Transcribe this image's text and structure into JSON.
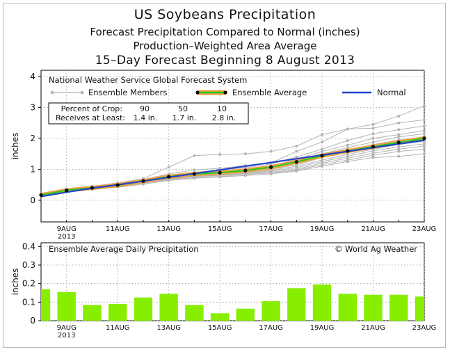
{
  "header": {
    "title": "US Soybeans Precipitation",
    "subtitle1": "Forecast Precipitation Compared to Normal (inches)",
    "subtitle2": "Production–Weighted Area Average",
    "subtitle3": "15–Day Forecast Beginning 8 August 2013"
  },
  "chart_data": [
    {
      "type": "line",
      "system_label": "National Weather Service Global Forecast System",
      "ylabel": "inches",
      "ylim": [
        -0.7,
        4.2
      ],
      "yticks": [
        "4",
        "3",
        "2",
        "1",
        "0"
      ],
      "ytick_values": [
        4,
        3,
        2,
        1,
        0
      ],
      "x": [
        8,
        9,
        10,
        11,
        12,
        13,
        14,
        15,
        16,
        17,
        18,
        19,
        20,
        21,
        22,
        23
      ],
      "xlim": [
        8,
        23
      ],
      "xticks": [
        "9AUG",
        "11AUG",
        "13AUG",
        "15AUG",
        "17AUG",
        "19AUG",
        "21AUG",
        "23AUG"
      ],
      "xtick_values": [
        9,
        11,
        13,
        15,
        17,
        19,
        21,
        23
      ],
      "xtick_year": "2013",
      "grid": true,
      "legend": {
        "members": "Ensemble Members",
        "average": "Ensemble Average",
        "normal": "Normal"
      },
      "crop_table": {
        "row1_label": "Percent of Crop:",
        "row1_values": [
          "90",
          "50",
          "10"
        ],
        "row2_label": "Receives at Least:",
        "row2_values": [
          "1.4 in.",
          "1.7 in.",
          "2.8 in."
        ]
      },
      "colors": {
        "members": "#b4b4b4",
        "average_fill": "#f0a040",
        "average_line": "#22cc22",
        "average_dot": "#000000",
        "normal": "#2244cc",
        "grid": "#999999"
      },
      "series": [
        {
          "name": "Normal",
          "values": [
            0.12,
            0.26,
            0.39,
            0.5,
            0.62,
            0.74,
            0.86,
            0.98,
            1.1,
            1.22,
            1.34,
            1.46,
            1.58,
            1.7,
            1.82,
            1.94
          ]
        },
        {
          "name": "Ensemble Average",
          "values": [
            0.17,
            0.32,
            0.4,
            0.49,
            0.62,
            0.76,
            0.85,
            0.89,
            0.96,
            1.07,
            1.24,
            1.44,
            1.59,
            1.73,
            1.87,
            2.0
          ]
        },
        {
          "values": [
            0.17,
            0.33,
            0.45,
            0.56,
            0.7,
            1.07,
            1.44,
            1.48,
            1.5,
            1.58,
            1.75,
            2.12,
            2.3,
            2.45,
            2.72,
            3.05
          ]
        },
        {
          "values": [
            0.17,
            0.32,
            0.43,
            0.53,
            0.67,
            0.85,
            0.98,
            1.03,
            1.12,
            1.2,
            1.58,
            1.88,
            2.3,
            2.33,
            2.5,
            2.6
          ]
        },
        {
          "values": [
            0.17,
            0.31,
            0.41,
            0.52,
            0.66,
            0.8,
            0.9,
            0.98,
            1.05,
            1.17,
            1.4,
            1.65,
            1.93,
            2.15,
            2.28,
            2.4
          ]
        },
        {
          "values": [
            0.17,
            0.32,
            0.42,
            0.5,
            0.64,
            0.78,
            0.88,
            0.93,
            1.0,
            1.1,
            1.32,
            1.58,
            1.78,
            2.0,
            2.12,
            2.25
          ]
        },
        {
          "values": [
            0.17,
            0.31,
            0.4,
            0.49,
            0.62,
            0.76,
            0.85,
            0.9,
            0.97,
            1.05,
            1.25,
            1.5,
            1.7,
            1.88,
            2.05,
            2.15
          ]
        },
        {
          "values": [
            0.17,
            0.3,
            0.39,
            0.48,
            0.6,
            0.74,
            0.83,
            0.88,
            0.95,
            1.02,
            1.2,
            1.45,
            1.62,
            1.8,
            1.95,
            2.05
          ]
        },
        {
          "values": [
            0.17,
            0.31,
            0.39,
            0.47,
            0.59,
            0.72,
            0.81,
            0.86,
            0.93,
            1.0,
            1.15,
            1.38,
            1.55,
            1.72,
            1.88,
            1.98
          ]
        },
        {
          "values": [
            0.17,
            0.3,
            0.38,
            0.46,
            0.58,
            0.71,
            0.79,
            0.84,
            0.9,
            0.97,
            1.1,
            1.3,
            1.48,
            1.65,
            1.8,
            1.9
          ]
        },
        {
          "values": [
            0.17,
            0.29,
            0.37,
            0.45,
            0.57,
            0.7,
            0.78,
            0.82,
            0.88,
            0.94,
            1.05,
            1.25,
            1.42,
            1.6,
            1.72,
            1.82
          ]
        },
        {
          "values": [
            0.17,
            0.29,
            0.36,
            0.44,
            0.55,
            0.68,
            0.76,
            0.8,
            0.86,
            0.91,
            1.0,
            1.2,
            1.36,
            1.52,
            1.65,
            1.75
          ]
        },
        {
          "values": [
            0.17,
            0.3,
            0.37,
            0.44,
            0.55,
            0.66,
            0.73,
            0.77,
            0.83,
            0.88,
            0.97,
            1.15,
            1.3,
            1.45,
            1.58,
            1.65
          ]
        },
        {
          "values": [
            0.17,
            0.28,
            0.35,
            0.42,
            0.52,
            0.64,
            0.71,
            0.75,
            0.8,
            0.85,
            0.94,
            1.1,
            1.25,
            1.38,
            1.42,
            1.5
          ]
        }
      ]
    },
    {
      "type": "bar",
      "title": "Ensemble Average Daily Precipitation",
      "credit": "© World Ag Weather",
      "ylabel": "inches",
      "ylim": [
        0,
        0.42
      ],
      "yticks": [
        "0.4",
        "0.3",
        "0.2",
        "0.1",
        "0"
      ],
      "ytick_values": [
        0.4,
        0.3,
        0.2,
        0.1,
        0
      ],
      "x": [
        8,
        9,
        10,
        11,
        12,
        13,
        14,
        15,
        16,
        17,
        18,
        19,
        20,
        21,
        22,
        23
      ],
      "values": [
        0.17,
        0.155,
        0.085,
        0.09,
        0.125,
        0.145,
        0.085,
        0.04,
        0.065,
        0.105,
        0.175,
        0.195,
        0.145,
        0.14,
        0.14,
        0.13
      ],
      "xticks": [
        "9AUG",
        "11AUG",
        "13AUG",
        "15AUG",
        "17AUG",
        "19AUG",
        "21AUG",
        "23AUG"
      ],
      "xtick_values": [
        9,
        11,
        13,
        15,
        17,
        19,
        21,
        23
      ],
      "xtick_year": "2013",
      "grid": true,
      "colors": {
        "bar": "#88ee00",
        "grid": "#999999"
      }
    }
  ]
}
